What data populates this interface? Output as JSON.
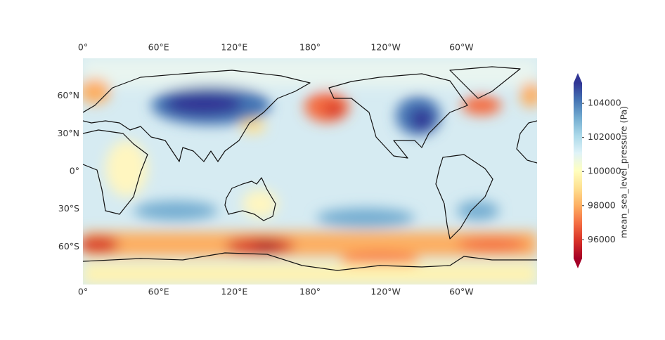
{
  "map": {
    "lon_lim": [
      0,
      360
    ],
    "lat_lim": [
      -90,
      90
    ],
    "lon_ticks": [
      {
        "value": 0,
        "label": "0°"
      },
      {
        "value": 60,
        "label": "60°E"
      },
      {
        "value": 120,
        "label": "120°E"
      },
      {
        "value": 180,
        "label": "180°"
      },
      {
        "value": -120,
        "label": "120°W"
      },
      {
        "value": -60,
        "label": "60°W"
      }
    ],
    "lat_ticks": [
      {
        "value": 60,
        "label": "60°N"
      },
      {
        "value": 30,
        "label": "30°N"
      },
      {
        "value": 0,
        "label": "0°"
      },
      {
        "value": -30,
        "label": "30°S"
      },
      {
        "value": -60,
        "label": "60°S"
      }
    ]
  },
  "colorbar": {
    "label": "mean_sea_level_pressure (Pa)",
    "lim": [
      94900,
      105200
    ],
    "ticks": [
      96000,
      98000,
      100000,
      102000,
      104000
    ],
    "colormap": [
      "#a50026",
      "#d73027",
      "#f46d43",
      "#fdae61",
      "#fee090",
      "#ffffbf",
      "#e0f3f8",
      "#abd9e9",
      "#74add1",
      "#4575b4",
      "#313695"
    ]
  }
}
